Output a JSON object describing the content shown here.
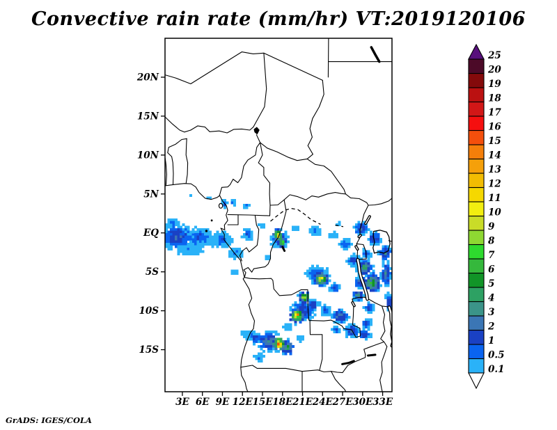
{
  "title": "Convective rain rate (mm/hr) VT:2019120106",
  "footer": {
    "attribution": "GrADS: IGES/COLA"
  },
  "axes": {
    "lat_ticks": [
      {
        "label": "20N",
        "deg": 20
      },
      {
        "label": "15N",
        "deg": 15
      },
      {
        "label": "10N",
        "deg": 10
      },
      {
        "label": "5N",
        "deg": 5
      },
      {
        "label": "EQ",
        "deg": 0
      },
      {
        "label": "5S",
        "deg": -5
      },
      {
        "label": "10S",
        "deg": -10
      },
      {
        "label": "15S",
        "deg": -15
      }
    ],
    "lon_ticks": [
      {
        "label": "3E",
        "deg": 3
      },
      {
        "label": "6E",
        "deg": 6
      },
      {
        "label": "9E",
        "deg": 9
      },
      {
        "label": "12E",
        "deg": 12
      },
      {
        "label": "15E",
        "deg": 15
      },
      {
        "label": "18E",
        "deg": 18
      },
      {
        "label": "21E",
        "deg": 21
      },
      {
        "label": "24E",
        "deg": 24
      },
      {
        "label": "27E",
        "deg": 27
      },
      {
        "label": "30E",
        "deg": 30
      },
      {
        "label": "33E",
        "deg": 33
      }
    ]
  },
  "colorbar": {
    "labels": [
      "0.1",
      "0.5",
      "1",
      "2",
      "3",
      "4",
      "5",
      "6",
      "7",
      "8",
      "9",
      "10",
      "11",
      "12",
      "13",
      "14",
      "15",
      "16",
      "17",
      "18",
      "19",
      "20",
      "25"
    ],
    "boundaries": [
      0.1,
      0.5,
      1,
      2,
      3,
      4,
      5,
      6,
      7,
      8,
      9,
      10,
      11,
      12,
      13,
      14,
      15,
      16,
      17,
      18,
      19,
      20,
      25
    ],
    "colors_low_to_high": [
      "#2ab2f8",
      "#0a64f0",
      "#1a41c4",
      "#3b76b5",
      "#3b9489",
      "#2da163",
      "#119427",
      "#35b83c",
      "#2eda2e",
      "#8ed832",
      "#c9dc28",
      "#f2ee10",
      "#f5d800",
      "#f2bc02",
      "#f5a00a",
      "#f57f0a",
      "#f44f0c",
      "#f50f0f",
      "#d21717",
      "#bb1111",
      "#840a0b",
      "#4c0a28"
    ],
    "over_color": "#58107c",
    "under_color": "#ffffff"
  },
  "chart_data": {
    "type": "heatmap",
    "title": "Convective rain rate",
    "units": "mm/hr",
    "valid_time": "2019120106",
    "lon_range": [
      0.4,
      34.4
    ],
    "lat_range": [
      -20.4,
      25.0
    ],
    "levels": [
      0.1,
      0.5,
      1,
      2,
      3,
      4,
      5,
      6,
      7,
      8,
      9,
      10,
      11,
      12,
      13,
      14,
      15,
      16,
      17,
      18,
      19,
      20,
      25
    ],
    "legend_position": "right",
    "cluster_fields": [
      "lon",
      "lat",
      "radius_lon_deg",
      "radius_lat_deg",
      "peak_mm_hr"
    ],
    "rain_clusters": [
      [
        2.2,
        -0.5,
        3.6,
        2.3,
        2.4
      ],
      [
        5.5,
        -0.6,
        3.0,
        1.9,
        1.6
      ],
      [
        8.8,
        -0.9,
        2.6,
        1.6,
        1.1
      ],
      [
        4.0,
        -2.1,
        3.4,
        1.3,
        0.7
      ],
      [
        1.5,
        1.3,
        1.7,
        0.9,
        0.9
      ],
      [
        11.0,
        -2.6,
        2.0,
        1.2,
        0.7
      ],
      [
        12.8,
        -0.2,
        1.3,
        1.1,
        1.4
      ],
      [
        14.9,
        0.9,
        1.0,
        0.7,
        0.5
      ],
      [
        10.9,
        -5.0,
        0.9,
        0.7,
        0.6
      ],
      [
        15.8,
        -3.2,
        0.9,
        0.6,
        0.5
      ],
      [
        17.5,
        -0.8,
        2.1,
        1.9,
        1.2
      ],
      [
        19.9,
        0.7,
        1.0,
        0.6,
        0.6
      ],
      [
        22.8,
        0.3,
        1.8,
        1.0,
        0.8
      ],
      [
        25.4,
        -0.3,
        1.4,
        0.8,
        0.6
      ],
      [
        26.4,
        1.1,
        0.8,
        0.5,
        0.5
      ],
      [
        27.4,
        -1.4,
        1.4,
        1.0,
        1.6
      ],
      [
        29.8,
        0.6,
        1.6,
        1.3,
        2.4
      ],
      [
        31.8,
        -0.7,
        1.5,
        1.2,
        2.6
      ],
      [
        33.4,
        -2.6,
        1.4,
        1.4,
        3.0
      ],
      [
        30.6,
        -2.6,
        1.2,
        1.0,
        1.5
      ],
      [
        28.7,
        -3.5,
        1.5,
        1.2,
        2.0
      ],
      [
        30.3,
        -4.5,
        1.6,
        1.3,
        6.0
      ],
      [
        29.6,
        -6.3,
        1.3,
        1.1,
        3.0
      ],
      [
        31.4,
        -6.4,
        1.9,
        1.6,
        8.0
      ],
      [
        33.5,
        -5.3,
        1.1,
        2.0,
        4.0
      ],
      [
        34.0,
        -8.8,
        0.9,
        1.6,
        3.0
      ],
      [
        29.4,
        -8.0,
        1.2,
        1.0,
        5.0
      ],
      [
        31.0,
        -9.6,
        1.2,
        1.0,
        2.0
      ],
      [
        30.6,
        -11.6,
        1.3,
        1.0,
        1.8
      ],
      [
        30.3,
        -13.0,
        1.4,
        1.0,
        2.2
      ],
      [
        23.2,
        -5.3,
        2.6,
        1.8,
        1.3
      ],
      [
        23.8,
        -5.9,
        1.5,
        1.2,
        13
      ],
      [
        25.8,
        -7.0,
        1.2,
        0.9,
        2.0
      ],
      [
        21.3,
        -8.3,
        1.2,
        1.0,
        12
      ],
      [
        22.5,
        -9.3,
        1.6,
        1.2,
        2.5
      ],
      [
        21.0,
        -10.0,
        2.8,
        1.9,
        2.2
      ],
      [
        20.2,
        -10.6,
        1.6,
        1.3,
        16
      ],
      [
        24.5,
        -10.0,
        1.3,
        1.0,
        1.5
      ],
      [
        26.6,
        -10.7,
        1.7,
        1.3,
        3.5
      ],
      [
        28.4,
        -12.6,
        1.5,
        1.2,
        2.8
      ],
      [
        26.0,
        -12.4,
        1.1,
        0.9,
        1.3
      ],
      [
        16.0,
        -13.9,
        2.6,
        1.7,
        4.0
      ],
      [
        13.9,
        -13.4,
        1.9,
        1.2,
        1.5
      ],
      [
        17.5,
        -14.2,
        1.4,
        1.2,
        19
      ],
      [
        18.7,
        -14.7,
        1.5,
        1.3,
        6.0
      ],
      [
        12.5,
        -13.0,
        1.2,
        0.9,
        0.7
      ],
      [
        14.4,
        -16.0,
        1.3,
        0.9,
        0.8
      ],
      [
        18.8,
        -12.1,
        1.1,
        0.8,
        0.9
      ],
      [
        20.6,
        -13.5,
        1.0,
        0.8,
        0.7
      ],
      [
        6.9,
        4.5,
        0.8,
        0.5,
        0.5
      ],
      [
        9.3,
        3.8,
        0.8,
        0.7,
        1.8
      ],
      [
        10.6,
        3.9,
        0.7,
        0.5,
        1.3
      ],
      [
        12.4,
        3.5,
        0.9,
        0.5,
        1.0
      ],
      [
        4.1,
        4.9,
        0.5,
        0.4,
        0.4
      ],
      [
        1.6,
        -12.5,
        0.35,
        0.3,
        0.3
      ],
      [
        6.6,
        -13.5,
        0.3,
        0.25,
        0.3
      ],
      [
        17.3,
        -0.3,
        1.1,
        1.0,
        15
      ],
      [
        17.9,
        -1.2,
        0.9,
        0.9,
        12
      ]
    ]
  }
}
